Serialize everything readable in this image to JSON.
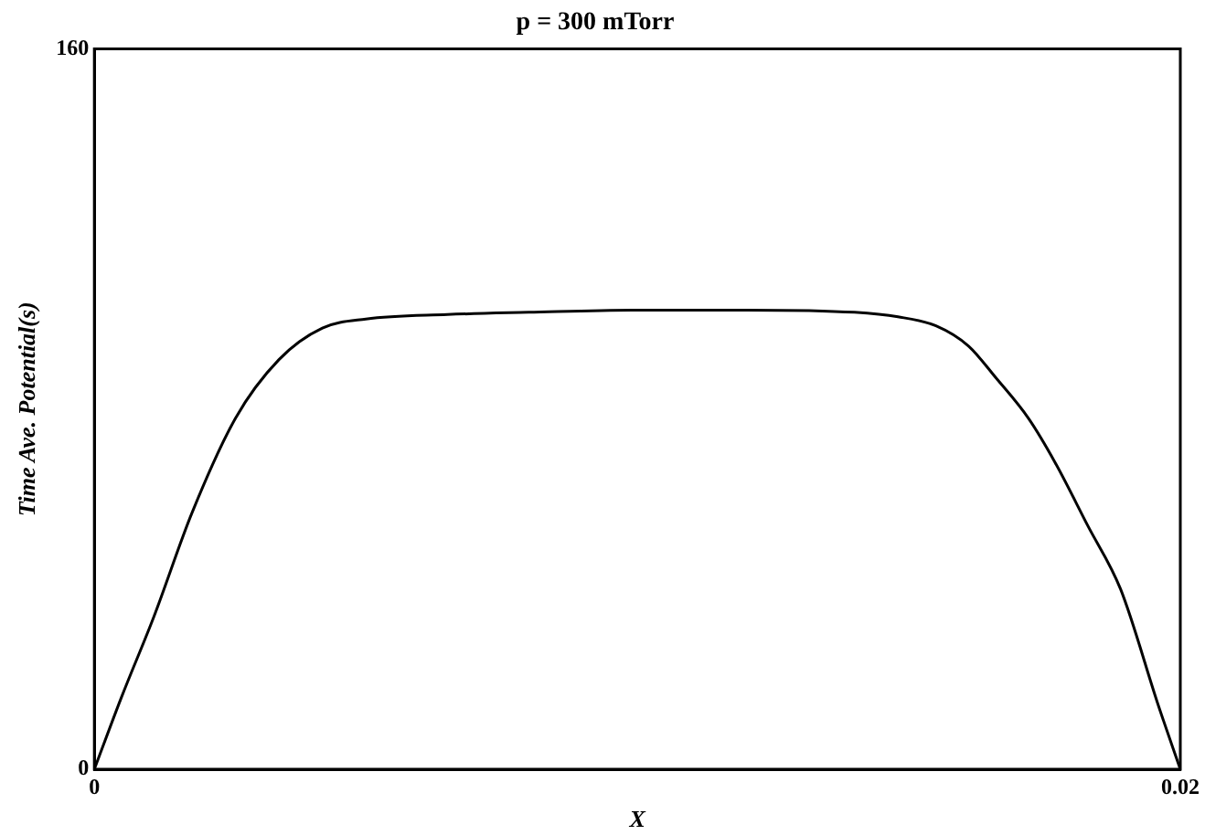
{
  "chart_data": {
    "type": "line",
    "title": "p = 300 mTorr",
    "xlabel": "X",
    "ylabel": "Time Ave. Potential(s)",
    "x": [
      0,
      0.0005,
      0.0011,
      0.0018,
      0.0026,
      0.0034,
      0.0042,
      0.005,
      0.0065,
      0.008,
      0.0099,
      0.012,
      0.014,
      0.0148,
      0.0155,
      0.0161,
      0.0166,
      0.0172,
      0.0177,
      0.0183,
      0.0189,
      0.0196,
      0.02
    ],
    "series": [
      {
        "color": "#000000",
        "values": [
          0,
          16,
          34,
          57,
          78,
          91,
          98,
          100,
          101,
          101.5,
          102,
          102,
          101.5,
          100.5,
          98.5,
          94,
          87,
          78,
          68,
          54,
          40,
          14,
          0
        ]
      }
    ],
    "xlim": [
      0,
      0.02
    ],
    "ylim": [
      0,
      160
    ],
    "xticks": [
      0,
      0.02
    ],
    "yticks": [
      0,
      160
    ],
    "legend": false,
    "marker": "none",
    "line_style": "solid"
  }
}
